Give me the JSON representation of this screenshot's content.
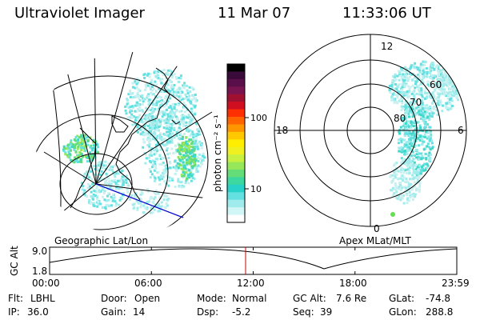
{
  "header": {
    "instrument": "Ultraviolet Imager",
    "date": "11 Mar 07",
    "time": "11:33:06 UT"
  },
  "colorbar": {
    "ticks": [
      "100",
      "10"
    ],
    "label": "photon cm⁻² s⁻¹",
    "colors": [
      "#000000",
      "#3a0a3a",
      "#5a0f4a",
      "#7a1450",
      "#a01030",
      "#d01020",
      "#ff3000",
      "#ff6400",
      "#ff9600",
      "#ffc800",
      "#ffee00",
      "#f0f020",
      "#c8f040",
      "#96e85a",
      "#64dc78",
      "#3cd8a0",
      "#28d2c8",
      "#64e0e0",
      "#a0ecec",
      "#d0f6f6",
      "#ffffff"
    ]
  },
  "left_panel": {
    "caption": "Geographic Lat/Lon"
  },
  "right_panel": {
    "caption": "Apex MLat/MLT",
    "lat_labels": [
      "60",
      "70",
      "80"
    ],
    "mlt_labels": {
      "top": "12",
      "left": "18",
      "right": "6",
      "bottom": "0"
    }
  },
  "timeline": {
    "ylabel": "GC Alt",
    "y_ticks": [
      "9.0",
      "1.8"
    ],
    "x_ticks": [
      "00:00",
      "06:00",
      "12:00",
      "18:00",
      "23:59"
    ],
    "current_time_hours": 11.55,
    "marker_color": "#cc0000"
  },
  "footer": {
    "row1": [
      {
        "label": "Flt:",
        "value": "LBHL"
      },
      {
        "label": "Door:",
        "value": "Open"
      },
      {
        "label": "Mode:",
        "value": "Normal"
      },
      {
        "label": "GC Alt:",
        "value": "7.6 Re"
      },
      {
        "label": "GLat:",
        "value": "-74.8"
      }
    ],
    "row2": [
      {
        "label": "IP:",
        "value": "36.0"
      },
      {
        "label": "Gain:",
        "value": "14"
      },
      {
        "label": "Dsp:",
        "value": "-5.2"
      },
      {
        "label": "Seq:",
        "value": "39"
      },
      {
        "label": "GLon:",
        "value": "288.8"
      }
    ]
  }
}
